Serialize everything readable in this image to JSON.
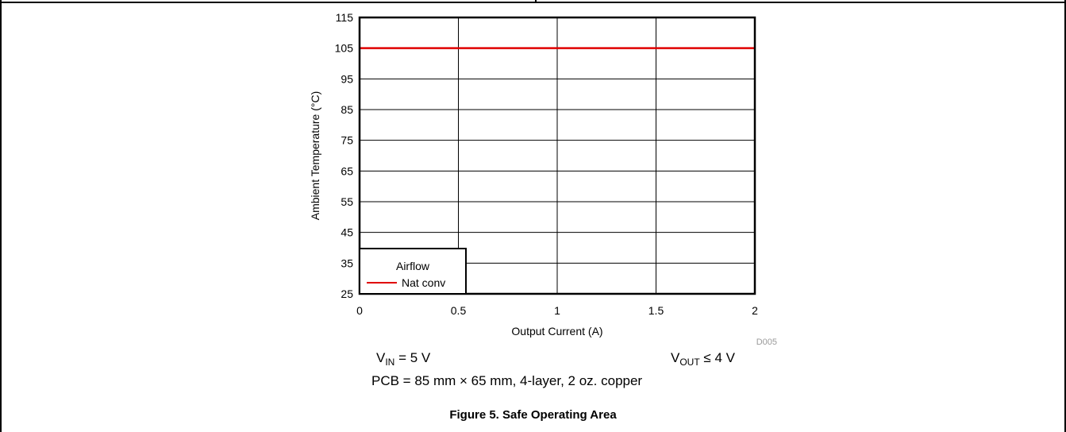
{
  "chart_data": {
    "type": "line",
    "x": [
      0,
      0.5,
      1,
      1.5,
      2
    ],
    "series": [
      {
        "name": "Nat conv",
        "x": [
          0,
          2
        ],
        "y": [
          105,
          105
        ],
        "color": "#e00000"
      }
    ],
    "xlabel": "Output Current (A)",
    "ylabel": "Ambient Temperature (°C)",
    "xlim": [
      0,
      2
    ],
    "ylim": [
      25,
      115
    ],
    "xticks": [
      "0",
      "0.5",
      "1",
      "1.5",
      "2"
    ],
    "yticks": [
      "25",
      "35",
      "45",
      "55",
      "65",
      "75",
      "85",
      "95",
      "105",
      "115"
    ],
    "grid": true,
    "legend": {
      "title": "Airflow",
      "placement": "bottom-left"
    },
    "figure_id": "D005"
  },
  "conditions": {
    "vin": {
      "main": "V",
      "sub": "IN",
      "rest": " = 5 V"
    },
    "vout": {
      "main": "V",
      "sub": "OUT",
      "rest": " ≤ 4 V"
    },
    "pcb": "PCB = 85 mm × 65 mm, 4-layer, 2 oz. copper"
  },
  "figure_caption": "Figure 5. Safe Operating Area"
}
